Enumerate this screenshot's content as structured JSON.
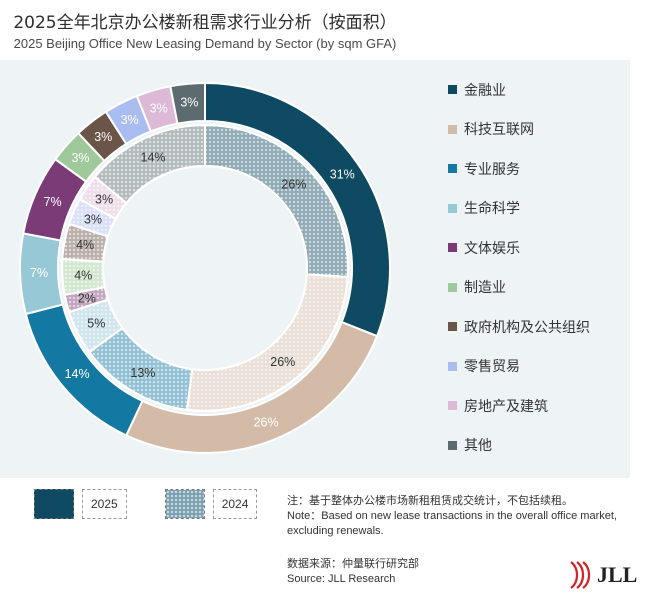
{
  "title_zh": "2025全年北京办公楼新租需求行业分析（按面积）",
  "title_en": "2025 Beijing Office New Leasing Demand by Sector (by sqm GFA)",
  "chart_data": {
    "type": "donut",
    "title": "2025全年北京办公楼新租需求行业分析（按面积）",
    "subtitle": "2025 Beijing Office New Leasing Demand by Sector (by sqm GFA)",
    "unit": "%",
    "categories": [
      "金融业",
      "科技互联网",
      "专业服务",
      "生命科学",
      "文体娱乐",
      "制造业",
      "政府机构及公共组织",
      "零售贸易",
      "房地产及建筑",
      "其他"
    ],
    "colors": [
      "#0e4a62",
      "#d3bba7",
      "#1479a2",
      "#97c8d6",
      "#7b3b76",
      "#9fc99a",
      "#6b5448",
      "#a9bdf0",
      "#dcb9d6",
      "#5c6b70"
    ],
    "series": [
      {
        "name": "2025",
        "ring": "outer",
        "values": [
          31,
          26,
          14,
          7,
          7,
          3,
          3,
          3,
          3,
          3
        ],
        "labels": [
          "31%",
          "26%",
          "14%",
          "7%",
          "7%",
          "3%",
          "3%",
          "3%",
          "3%",
          "3%"
        ]
      },
      {
        "name": "2024",
        "ring": "inner",
        "values": [
          26,
          26,
          13,
          5,
          2,
          4,
          4,
          3,
          3,
          14
        ],
        "labels": [
          "26%",
          "26%",
          "13%",
          "5%",
          "2%",
          "4%",
          "4%",
          "3%",
          "3%",
          "14%"
        ]
      }
    ]
  },
  "legend_years": {
    "y2025": "2025",
    "y2024": "2024"
  },
  "note_zh": "注：基于整体办公楼市场新租租赁成交统计，不包括续租。",
  "note_en1": "Note：Based on new lease transactions in the overall office market,",
  "note_en2": "excluding renewals.",
  "source_zh": "数据来源：仲量联行研究部",
  "source_en": "Source: JLL Research",
  "logo_text": "JLL"
}
